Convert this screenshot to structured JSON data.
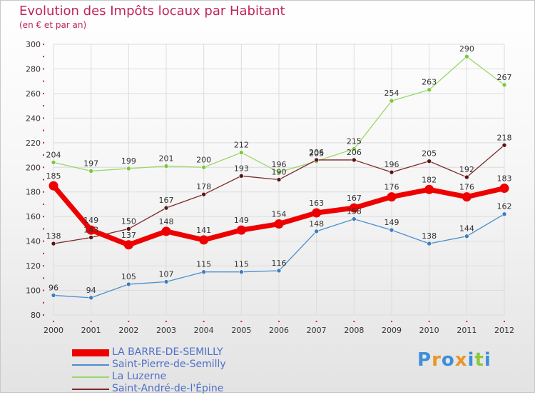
{
  "header": {
    "title": "Evolution des Impôts locaux par Habitant",
    "subtitle": "(en € et par an)"
  },
  "logo": {
    "letters": [
      "P",
      "r",
      "o",
      "x",
      "i",
      "t",
      "i"
    ],
    "colors": [
      "#3d8fd8",
      "#e8962a",
      "#3d8fd8",
      "#e8962a",
      "#3d8fd8",
      "#8cc83c",
      "#3d8fd8"
    ]
  },
  "chart_data": {
    "type": "line",
    "x": [
      "2000",
      "2001",
      "2002",
      "2003",
      "2004",
      "2005",
      "2006",
      "2007",
      "2008",
      "2009",
      "2010",
      "2011",
      "2012"
    ],
    "ylim": [
      80,
      300
    ],
    "yticks": [
      80,
      100,
      120,
      140,
      160,
      180,
      200,
      220,
      240,
      260,
      280,
      300
    ],
    "grid": true,
    "legend": "bottom-left",
    "series": [
      {
        "name": "Saint-Pierre-de-Semilly",
        "color": "#4a8ed0",
        "marker": "#3a7ec0",
        "values": [
          96,
          94,
          105,
          107,
          115,
          115,
          116,
          148,
          158,
          149,
          138,
          144,
          162
        ]
      },
      {
        "name": "La Luzerne",
        "color": "#98d868",
        "marker": "#7cc83c",
        "values": [
          204,
          197,
          199,
          201,
          200,
          212,
          196,
          205,
          215,
          254,
          263,
          290,
          267
        ]
      },
      {
        "name": "Saint-André-de-l'Épine",
        "color": "#7a2a2a",
        "marker": "#5a1515",
        "values": [
          138,
          143,
          150,
          167,
          178,
          193,
          190,
          206,
          206,
          196,
          205,
          192,
          218
        ]
      },
      {
        "name": "LA BARRE-DE-SEMILLY",
        "color": "#ee0000",
        "marker": "#ee0000",
        "bold": true,
        "values": [
          185,
          149,
          137,
          148,
          141,
          149,
          154,
          163,
          167,
          176,
          182,
          176,
          183
        ]
      }
    ],
    "legend_order": [
      3,
      0,
      1,
      2
    ]
  }
}
